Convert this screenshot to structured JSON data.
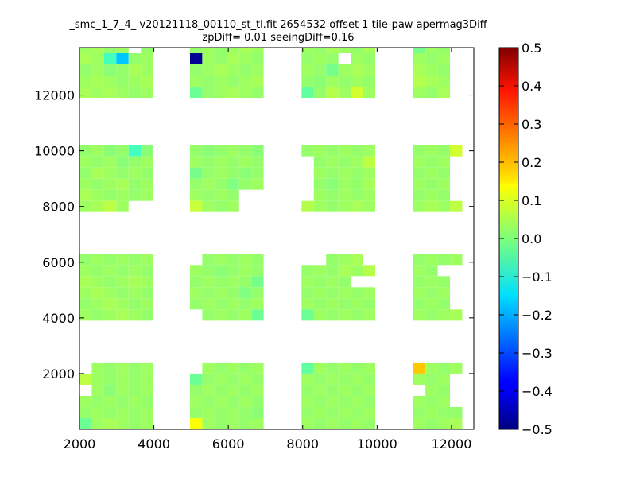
{
  "chart_data": {
    "type": "heatmap",
    "title": "_smc_1_7_4_ v20121118_00110_st_tl.fit 2654532 offset 1 tile-paw apermag3Diff",
    "subtitle": "zpDiff= 0.01 seeingDiff=0.16",
    "xlabel": "",
    "ylabel": "",
    "xlim": [
      2000,
      12600
    ],
    "ylim": [
      0,
      13700
    ],
    "xticks": [
      2000,
      4000,
      6000,
      8000,
      10000,
      12000
    ],
    "yticks": [
      2000,
      4000,
      6000,
      8000,
      10000,
      12000
    ],
    "colorbar": {
      "colormap": "jet",
      "range": [
        -0.5,
        0.5
      ],
      "ticks": [
        "0.5",
        "0.4",
        "0.3",
        "0.2",
        "0.1",
        "0.0",
        "−0.1",
        "−0.2",
        "−0.3",
        "−0.4",
        "−0.5"
      ]
    },
    "cell_size": {
      "dx": 330,
      "dy": 400
    },
    "x_column_starts": [
      [
        2000,
        2330,
        2660,
        2990,
        3320,
        3650
      ],
      [
        4970,
        5300,
        5630,
        5960,
        6290,
        6620
      ],
      [
        7970,
        8300,
        8630,
        8960,
        9290,
        9620
      ],
      [
        10970,
        11300,
        11630,
        11960
      ]
    ],
    "blocks": [
      {
        "x_group": 0,
        "y_rows": [
          13500,
          13100,
          12700,
          12300,
          11900
        ],
        "values": [
          [
            0.03,
            0.04,
            0.02,
            0.03,
            null,
            0.02
          ],
          [
            0.04,
            0.03,
            -0.06,
            -0.18,
            0.02,
            0.03
          ],
          [
            0.02,
            0.03,
            0.01,
            0.02,
            0.04,
            0.03
          ],
          [
            0.03,
            0.04,
            0.03,
            0.02,
            0.03,
            0.04
          ],
          [
            0.04,
            0.03,
            0.04,
            0.03,
            0.02,
            0.03
          ]
        ]
      },
      {
        "x_group": 1,
        "y_rows": [
          13500,
          13100,
          12700,
          12300,
          11900
        ],
        "values": [
          [
            0.02,
            0.03,
            0.02,
            0.03,
            0.04,
            0.03
          ],
          [
            -0.48,
            0.03,
            0.02,
            0.04,
            0.03,
            0.02
          ],
          [
            0.02,
            0.03,
            0.04,
            0.03,
            0.02,
            0.03
          ],
          [
            0.03,
            0.02,
            0.03,
            0.02,
            0.03,
            0.04
          ],
          [
            -0.02,
            0.02,
            0.03,
            0.04,
            0.03,
            0.02
          ]
        ]
      },
      {
        "x_group": 2,
        "y_rows": [
          13500,
          13100,
          12700,
          12300,
          11900
        ],
        "values": [
          [
            0.03,
            0.02,
            0.04,
            0.03,
            0.02,
            0.04
          ],
          [
            0.02,
            0.03,
            0.02,
            null,
            0.03,
            0.02
          ],
          [
            0.03,
            0.02,
            -0.01,
            0.03,
            0.04,
            0.03
          ],
          [
            0.02,
            0.01,
            0.03,
            0.02,
            0.03,
            0.02
          ],
          [
            -0.03,
            0.02,
            0.05,
            0.03,
            0.08,
            0.03
          ]
        ]
      },
      {
        "x_group": 3,
        "y_rows": [
          13500,
          13100,
          12700,
          12300,
          11900
        ],
        "values": [
          [
            -0.01,
            0.03,
            0.02,
            null
          ],
          [
            0.03,
            0.02,
            0.03,
            null
          ],
          [
            0.04,
            0.03,
            0.02,
            null
          ],
          [
            0.05,
            0.04,
            0.03,
            null
          ],
          [
            0.03,
            0.02,
            0.04,
            null
          ]
        ]
      },
      {
        "x_group": 0,
        "y_rows": [
          9800,
          9400,
          9000,
          8600,
          8200,
          7800
        ],
        "values": [
          [
            0.02,
            0.03,
            0.01,
            0.02,
            -0.06,
            0.01
          ],
          [
            0.03,
            0.02,
            0.03,
            0.01,
            0.02,
            0.03
          ],
          [
            0.02,
            0.04,
            0.03,
            0.02,
            0.03,
            0.02
          ],
          [
            0.03,
            0.02,
            0.03,
            0.04,
            0.02,
            0.03
          ],
          [
            0.04,
            0.03,
            0.02,
            0.03,
            0.02,
            0.03
          ],
          [
            0.03,
            0.04,
            0.06,
            0.03,
            null,
            null
          ]
        ]
      },
      {
        "x_group": 1,
        "y_rows": [
          9800,
          9400,
          9000,
          8600,
          8200,
          7800
        ],
        "values": [
          [
            0.02,
            0.01,
            0.02,
            0.03,
            0.02,
            0.01
          ],
          [
            0.03,
            0.02,
            0.03,
            0.02,
            0.03,
            0.02
          ],
          [
            -0.01,
            0.02,
            0.03,
            0.02,
            0.01,
            0.02
          ],
          [
            0.02,
            0.03,
            0.02,
            0.0,
            0.02,
            0.03
          ],
          [
            0.03,
            0.02,
            0.03,
            0.02,
            null,
            null
          ],
          [
            0.07,
            0.03,
            0.02,
            0.03,
            null,
            null
          ]
        ]
      },
      {
        "x_group": 2,
        "y_rows": [
          9800,
          9400,
          9000,
          8600,
          8200,
          7800
        ],
        "values": [
          [
            0.02,
            0.03,
            0.02,
            0.03,
            0.02,
            0.03
          ],
          [
            null,
            0.02,
            0.03,
            0.02,
            0.03,
            0.06
          ],
          [
            null,
            0.03,
            0.02,
            0.03,
            0.02,
            0.03
          ],
          [
            null,
            0.02,
            0.01,
            0.03,
            0.02,
            0.04
          ],
          [
            null,
            0.03,
            0.02,
            0.03,
            0.02,
            0.03
          ],
          [
            0.05,
            0.03,
            0.02,
            0.03,
            0.04,
            0.03
          ]
        ]
      },
      {
        "x_group": 3,
        "y_rows": [
          9800,
          9400,
          9000,
          8600,
          8200,
          7800
        ],
        "values": [
          [
            0.02,
            0.03,
            0.02,
            0.08
          ],
          [
            0.03,
            0.02,
            0.03,
            null
          ],
          [
            0.02,
            0.03,
            0.02,
            null
          ],
          [
            0.03,
            0.02,
            0.03,
            null
          ],
          [
            0.02,
            0.03,
            0.02,
            null
          ],
          [
            0.03,
            0.04,
            0.03,
            0.06
          ]
        ]
      },
      {
        "x_group": 0,
        "y_rows": [
          5900,
          5500,
          5100,
          4700,
          4300,
          3900
        ],
        "values": [
          [
            0.02,
            0.03,
            0.02,
            0.03,
            0.02,
            0.03
          ],
          [
            0.03,
            0.02,
            0.03,
            0.02,
            0.03,
            0.02
          ],
          [
            0.04,
            0.03,
            0.02,
            0.03,
            0.04,
            0.03
          ],
          [
            0.03,
            0.04,
            0.03,
            0.02,
            0.03,
            0.02
          ],
          [
            0.02,
            0.03,
            0.04,
            0.03,
            0.02,
            0.03
          ],
          [
            0.03,
            0.02,
            0.03,
            0.04,
            0.03,
            0.02
          ]
        ]
      },
      {
        "x_group": 1,
        "y_rows": [
          5900,
          5500,
          5100,
          4700,
          4300,
          3900
        ],
        "values": [
          [
            null,
            0.02,
            0.03,
            0.02,
            0.03,
            0.02
          ],
          [
            0.03,
            0.02,
            0.01,
            0.02,
            0.03,
            0.02
          ],
          [
            0.02,
            0.03,
            0.02,
            0.03,
            0.02,
            -0.01
          ],
          [
            0.03,
            0.02,
            0.03,
            0.02,
            0.0,
            0.02
          ],
          [
            0.02,
            0.03,
            0.02,
            0.03,
            0.02,
            0.03
          ],
          [
            null,
            0.02,
            0.03,
            0.02,
            0.03,
            -0.02
          ]
        ]
      },
      {
        "x_group": 2,
        "y_rows": [
          5900,
          5500,
          5100,
          4700,
          4300,
          3900
        ],
        "values": [
          [
            null,
            null,
            0.02,
            0.03,
            0.04,
            null
          ],
          [
            0.02,
            0.03,
            0.02,
            0.04,
            0.03,
            0.05
          ],
          [
            0.03,
            0.02,
            0.03,
            0.02,
            null,
            null
          ],
          [
            0.02,
            0.03,
            0.02,
            0.03,
            0.02,
            0.03
          ],
          [
            0.03,
            0.02,
            0.03,
            0.02,
            0.03,
            0.02
          ],
          [
            -0.02,
            0.03,
            0.02,
            0.03,
            0.02,
            0.03
          ]
        ]
      },
      {
        "x_group": 3,
        "y_rows": [
          5900,
          5500,
          5100,
          4700,
          4300,
          3900
        ],
        "values": [
          [
            0.02,
            0.03,
            0.02,
            0.03
          ],
          [
            0.03,
            0.02,
            null,
            null
          ],
          [
            0.02,
            0.03,
            0.02,
            null
          ],
          [
            0.03,
            0.02,
            0.03,
            null
          ],
          [
            0.02,
            0.03,
            0.02,
            null
          ],
          [
            0.03,
            0.02,
            0.03,
            0.04
          ]
        ]
      },
      {
        "x_group": 0,
        "y_rows": [
          2000,
          1600,
          1200,
          800,
          400,
          0
        ],
        "values": [
          [
            null,
            0.03,
            0.02,
            0.03,
            0.02,
            0.03
          ],
          [
            0.06,
            0.03,
            0.02,
            0.03,
            0.02,
            0.03
          ],
          [
            null,
            0.03,
            0.01,
            0.03,
            0.02,
            0.03
          ],
          [
            0.03,
            0.02,
            0.03,
            0.02,
            0.03,
            0.02
          ],
          [
            0.02,
            0.03,
            0.02,
            0.03,
            0.02,
            0.03
          ],
          [
            -0.02,
            0.03,
            0.04,
            0.03,
            0.02,
            0.03
          ]
        ]
      },
      {
        "x_group": 1,
        "y_rows": [
          2000,
          1600,
          1200,
          800,
          400,
          0
        ],
        "values": [
          [
            null,
            0.03,
            0.02,
            0.03,
            0.02,
            0.03
          ],
          [
            -0.02,
            0.02,
            0.03,
            0.02,
            0.03,
            0.02
          ],
          [
            0.02,
            0.03,
            0.02,
            0.03,
            0.02,
            0.03
          ],
          [
            0.03,
            0.02,
            0.03,
            0.02,
            0.03,
            0.02
          ],
          [
            0.02,
            0.03,
            0.02,
            0.03,
            0.02,
            0.01
          ],
          [
            0.12,
            0.03,
            0.02,
            0.03,
            0.02,
            0.03
          ]
        ]
      },
      {
        "x_group": 2,
        "y_rows": [
          2000,
          1600,
          1200,
          800,
          400,
          0
        ],
        "values": [
          [
            -0.03,
            0.03,
            0.02,
            0.03,
            0.02,
            0.03
          ],
          [
            0.03,
            0.02,
            0.03,
            0.02,
            0.03,
            0.02
          ],
          [
            0.02,
            0.03,
            0.02,
            0.03,
            0.02,
            0.03
          ],
          [
            0.03,
            0.02,
            0.03,
            0.02,
            0.03,
            0.02
          ],
          [
            0.02,
            0.03,
            0.02,
            0.03,
            0.02,
            0.03
          ],
          [
            0.03,
            0.02,
            0.03,
            0.02,
            0.03,
            0.02
          ]
        ]
      },
      {
        "x_group": 3,
        "y_rows": [
          2000,
          1600,
          1200,
          800,
          400,
          0
        ],
        "values": [
          [
            0.18,
            0.03,
            0.02,
            0.03
          ],
          [
            0.03,
            0.02,
            0.03,
            null
          ],
          [
            null,
            0.03,
            0.02,
            null
          ],
          [
            0.03,
            0.02,
            0.03,
            null
          ],
          [
            0.02,
            0.03,
            0.02,
            0.02
          ],
          [
            0.03,
            0.02,
            0.03,
            0.04
          ]
        ]
      }
    ]
  }
}
